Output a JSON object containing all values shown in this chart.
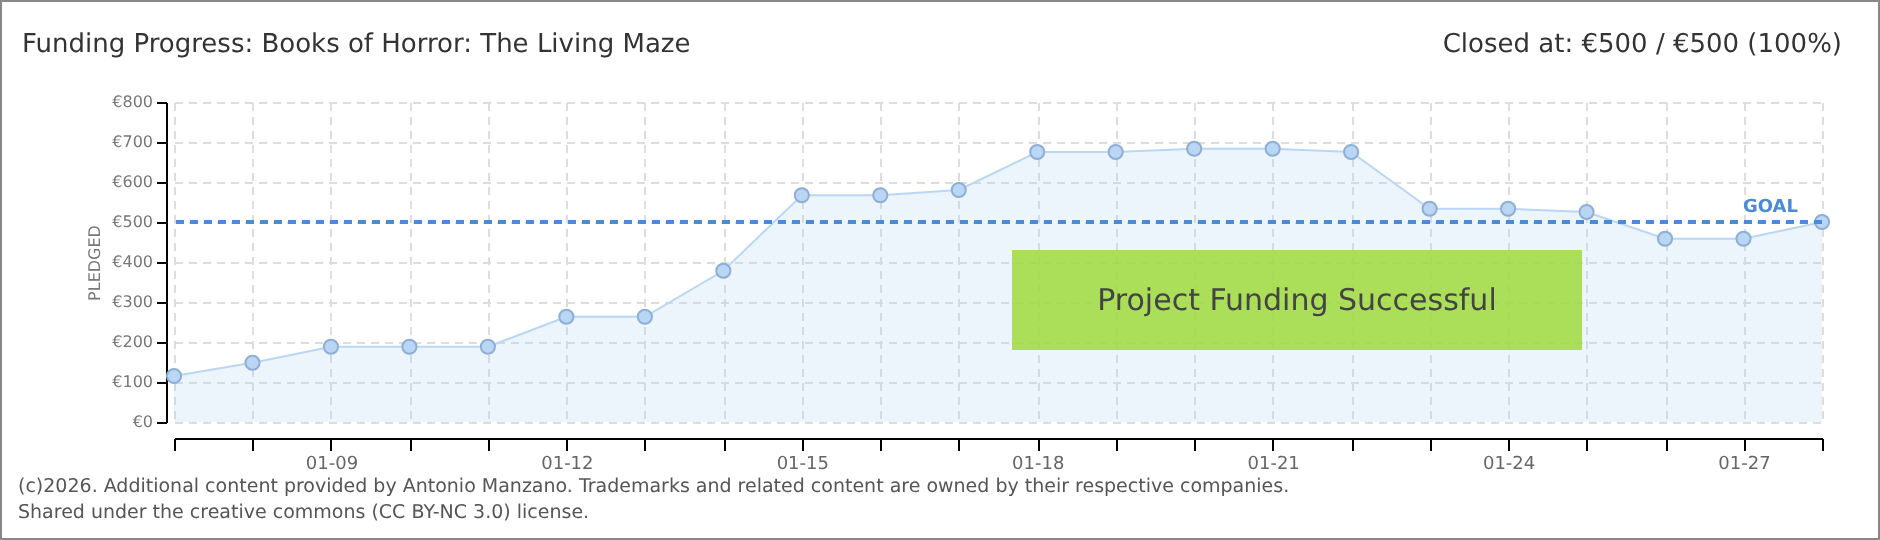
{
  "chart_data": {
    "type": "area",
    "title": "Funding Progress: Books of Horror: The Living Maze",
    "subtitle": "Closed at:  €500 /  €500 (100%)",
    "ylabel": "PLEDGED",
    "categories": [
      null,
      null,
      "01-09",
      null,
      null,
      "01-12",
      null,
      null,
      "01-15",
      null,
      null,
      "01-18",
      null,
      null,
      "01-21",
      null,
      null,
      "01-24",
      null,
      null,
      "01-27",
      null
    ],
    "series": [
      {
        "color": "#b9d6f5",
        "values": [
          115,
          148,
          188,
          188,
          188,
          263,
          263,
          378,
          567,
          567,
          580,
          675,
          675,
          683,
          683,
          675,
          533,
          533,
          525,
          458,
          458,
          500
        ]
      }
    ],
    "ylim": [
      0,
      800
    ],
    "yticks": [
      {
        "value": 0,
        "label": "€0"
      },
      {
        "value": 100,
        "label": "€100"
      },
      {
        "value": 200,
        "label": "€200"
      },
      {
        "value": 300,
        "label": "€300"
      },
      {
        "value": 400,
        "label": "€400"
      },
      {
        "value": 500,
        "label": "€500"
      },
      {
        "value": 600,
        "label": "€600"
      },
      {
        "value": 700,
        "label": "€700"
      },
      {
        "value": 800,
        "label": "€800"
      }
    ],
    "grid": true,
    "marker": "circle",
    "ref_lines": [
      {
        "axis": "y",
        "value": 500,
        "label": "GOAL",
        "color": "#4a8ad8",
        "line_style": "dashed"
      }
    ],
    "annotations": [
      "Project Funding Successful",
      "(c)2026. Additional content provided by Antonio Manzano. Trademarks and related content are owned by their respective companies.",
      "Shared under the creative commons (CC BY-NC 3.0) license."
    ]
  }
}
